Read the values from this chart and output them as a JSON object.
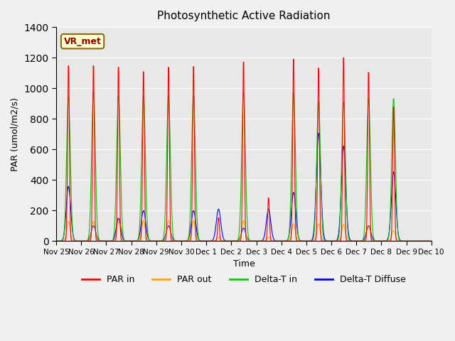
{
  "title": "Photosynthetic Active Radiation",
  "ylabel": "PAR (umol/m2/s)",
  "xlabel": "Time",
  "ylim": [
    0,
    1400
  ],
  "yticks": [
    0,
    200,
    400,
    600,
    800,
    1000,
    1200,
    1400
  ],
  "xtick_labels": [
    "Nov 25",
    "Nov 26",
    "Nov 27",
    "Nov 28",
    "Nov 29",
    "Nov 30",
    "Dec 1",
    "Dec 2",
    "Dec 3",
    "Dec 4",
    "Dec 5",
    "Dec 6",
    "Dec 7",
    "Dec 8",
    "Dec 9",
    "Dec 10"
  ],
  "colors": {
    "par_in": "#ff0000",
    "par_out": "#ffa500",
    "delta_t_in": "#00cc00",
    "delta_t_diffuse": "#0000ff"
  },
  "legend_labels": [
    "PAR in",
    "PAR out",
    "Delta-T in",
    "Delta-T Diffuse"
  ],
  "vr_met_label": "VR_met",
  "background_color": "#e8e8e8",
  "day_peaks": {
    "par_in": [
      1200,
      1200,
      1190,
      1160,
      1190,
      1195,
      160,
      1225,
      295,
      1245,
      1185,
      1255,
      1155,
      920,
      0
    ],
    "par_out": [
      130,
      130,
      130,
      135,
      135,
      135,
      25,
      135,
      25,
      115,
      115,
      110,
      95,
      70,
      0
    ],
    "delta_t_in": [
      950,
      985,
      960,
      960,
      960,
      960,
      0,
      980,
      0,
      980,
      920,
      920,
      940,
      940,
      0
    ],
    "delta_t_diff": [
      360,
      100,
      150,
      200,
      100,
      200,
      210,
      85,
      210,
      320,
      710,
      625,
      100,
      455,
      0
    ]
  }
}
